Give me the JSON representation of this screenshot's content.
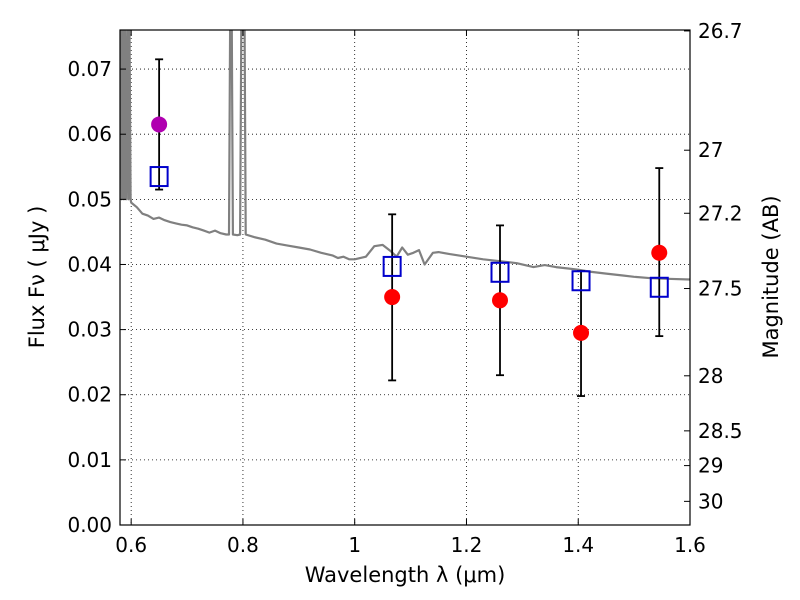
{
  "chart_data": {
    "type": "scatter",
    "xlabel": "Wavelength  λ (μm)",
    "ylabel_left": "Flux  Fν ( μJy )",
    "ylabel_right": "Magnitude (AB)",
    "xlim": [
      0.58,
      1.6
    ],
    "ylim": [
      0.0,
      0.076
    ],
    "grid": true,
    "x_ticks": [
      {
        "v": 0.6,
        "label": "0.6"
      },
      {
        "v": 0.8,
        "label": "0.8"
      },
      {
        "v": 1.0,
        "label": "1"
      },
      {
        "v": 1.2,
        "label": "1.2"
      },
      {
        "v": 1.4,
        "label": "1.4"
      },
      {
        "v": 1.6,
        "label": "1.6"
      }
    ],
    "y_ticks": [
      {
        "v": 0.0,
        "label": "0.00"
      },
      {
        "v": 0.01,
        "label": "0.01"
      },
      {
        "v": 0.02,
        "label": "0.02"
      },
      {
        "v": 0.03,
        "label": "0.03"
      },
      {
        "v": 0.04,
        "label": "0.04"
      },
      {
        "v": 0.05,
        "label": "0.05"
      },
      {
        "v": 0.06,
        "label": "0.06"
      },
      {
        "v": 0.07,
        "label": "0.07"
      }
    ],
    "mag_ticks": [
      {
        "v": 26.7,
        "label": "26.7"
      },
      {
        "v": 27.0,
        "label": "27"
      },
      {
        "v": 27.2,
        "label": "27.2"
      },
      {
        "v": 27.5,
        "label": "27.5"
      },
      {
        "v": 28.0,
        "label": "28"
      },
      {
        "v": 28.5,
        "label": "28.5"
      },
      {
        "v": 29.0,
        "label": "29"
      },
      {
        "v": 30.0,
        "label": "30"
      }
    ],
    "observed": [
      {
        "x": 0.65,
        "y": 0.0615,
        "err_lo": 0.0515,
        "err_hi": 0.0715,
        "color": "#b000b0"
      },
      {
        "x": 1.067,
        "y": 0.035,
        "err_lo": 0.0222,
        "err_hi": 0.0477,
        "color": "#ff0000"
      },
      {
        "x": 1.26,
        "y": 0.0345,
        "err_lo": 0.023,
        "err_hi": 0.046,
        "color": "#ff0000"
      },
      {
        "x": 1.405,
        "y": 0.0295,
        "err_lo": 0.0198,
        "err_hi": 0.039,
        "color": "#ff0000"
      },
      {
        "x": 1.545,
        "y": 0.0418,
        "err_lo": 0.029,
        "err_hi": 0.0548,
        "color": "#ff0000"
      }
    ],
    "model_bands": [
      {
        "x": 0.65,
        "y": 0.0535
      },
      {
        "x": 1.067,
        "y": 0.0397
      },
      {
        "x": 1.26,
        "y": 0.0388
      },
      {
        "x": 1.405,
        "y": 0.0375
      },
      {
        "x": 1.545,
        "y": 0.0365
      }
    ],
    "sed_curve": {
      "color": "#808080",
      "points": [
        [
          0.582,
          0.076
        ],
        [
          0.583,
          0.05
        ],
        [
          0.585,
          0.076
        ],
        [
          0.587,
          0.05
        ],
        [
          0.589,
          0.076
        ],
        [
          0.591,
          0.05
        ],
        [
          0.593,
          0.076
        ],
        [
          0.595,
          0.05
        ],
        [
          0.597,
          0.076
        ],
        [
          0.599,
          0.05
        ],
        [
          0.6,
          0.0495
        ],
        [
          0.61,
          0.0488
        ],
        [
          0.62,
          0.0478
        ],
        [
          0.63,
          0.0475
        ],
        [
          0.64,
          0.047
        ],
        [
          0.65,
          0.0472
        ],
        [
          0.66,
          0.0468
        ],
        [
          0.67,
          0.0465
        ],
        [
          0.68,
          0.0463
        ],
        [
          0.69,
          0.0461
        ],
        [
          0.7,
          0.046
        ],
        [
          0.71,
          0.0457
        ],
        [
          0.72,
          0.0455
        ],
        [
          0.73,
          0.0452
        ],
        [
          0.74,
          0.0449
        ],
        [
          0.75,
          0.0452
        ],
        [
          0.76,
          0.0448
        ],
        [
          0.77,
          0.0446
        ],
        [
          0.775,
          0.0446
        ],
        [
          0.777,
          0.076
        ],
        [
          0.78,
          0.076
        ],
        [
          0.782,
          0.0446
        ],
        [
          0.79,
          0.0445
        ],
        [
          0.795,
          0.0446
        ],
        [
          0.797,
          0.076
        ],
        [
          0.803,
          0.076
        ],
        [
          0.805,
          0.0446
        ],
        [
          0.82,
          0.0442
        ],
        [
          0.84,
          0.0438
        ],
        [
          0.86,
          0.0432
        ],
        [
          0.88,
          0.0429
        ],
        [
          0.9,
          0.0426
        ],
        [
          0.92,
          0.0423
        ],
        [
          0.94,
          0.0418
        ],
        [
          0.96,
          0.0414
        ],
        [
          0.97,
          0.041
        ],
        [
          0.98,
          0.0412
        ],
        [
          0.99,
          0.0408
        ],
        [
          1.0,
          0.0408
        ],
        [
          1.02,
          0.0412
        ],
        [
          1.035,
          0.0428
        ],
        [
          1.05,
          0.043
        ],
        [
          1.065,
          0.042
        ],
        [
          1.075,
          0.0412
        ],
        [
          1.085,
          0.0426
        ],
        [
          1.095,
          0.0415
        ],
        [
          1.105,
          0.0418
        ],
        [
          1.115,
          0.0422
        ],
        [
          1.125,
          0.04
        ],
        [
          1.14,
          0.0418
        ],
        [
          1.15,
          0.0419
        ],
        [
          1.17,
          0.0416
        ],
        [
          1.2,
          0.0412
        ],
        [
          1.23,
          0.0408
        ],
        [
          1.26,
          0.0405
        ],
        [
          1.29,
          0.0402
        ],
        [
          1.32,
          0.0396
        ],
        [
          1.34,
          0.0399
        ],
        [
          1.36,
          0.0396
        ],
        [
          1.38,
          0.0394
        ],
        [
          1.4,
          0.0392
        ],
        [
          1.42,
          0.0389
        ],
        [
          1.45,
          0.0386
        ],
        [
          1.48,
          0.0383
        ],
        [
          1.5,
          0.0381
        ],
        [
          1.53,
          0.0379
        ],
        [
          1.56,
          0.0378
        ],
        [
          1.6,
          0.0377
        ]
      ]
    }
  }
}
